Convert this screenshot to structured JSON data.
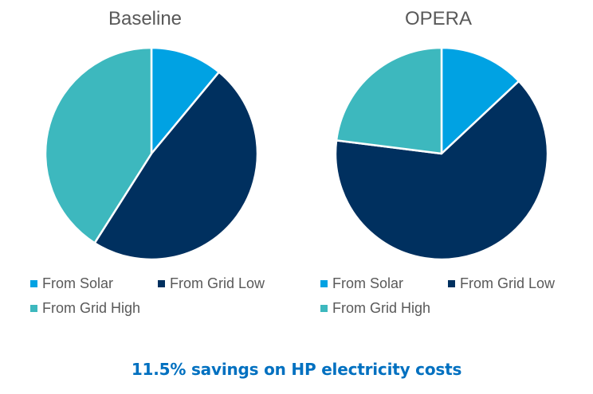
{
  "chart_data": [
    {
      "type": "pie",
      "title": "Baseline",
      "categories": [
        "From Solar",
        "From Grid Low",
        "From Grid High"
      ],
      "values": [
        11,
        48,
        41
      ],
      "unit": "% (estimated share)",
      "colors": [
        "#00A2E3",
        "#00305F",
        "#3DB8BE"
      ],
      "legend_position": "bottom"
    },
    {
      "type": "pie",
      "title": "OPERA",
      "categories": [
        "From Solar",
        "From Grid Low",
        "From Grid High"
      ],
      "values": [
        13,
        64,
        23
      ],
      "unit": "% (estimated share)",
      "colors": [
        "#00A2E3",
        "#00305F",
        "#3DB8BE"
      ],
      "legend_position": "bottom"
    }
  ],
  "charts": [
    {
      "title": "Baseline",
      "legend": [
        "From Solar",
        "From Grid Low",
        "From Grid High"
      ]
    },
    {
      "title": "OPERA",
      "legend": [
        "From Solar",
        "From Grid Low",
        "From Grid High"
      ]
    }
  ],
  "colors": {
    "solar": "#00A2E3",
    "grid_low": "#00305F",
    "grid_high": "#3DB8BE",
    "footer_text": "#0070C0",
    "label_text": "#595959"
  },
  "footer": {
    "text": "11.5% savings on HP electricity costs"
  }
}
